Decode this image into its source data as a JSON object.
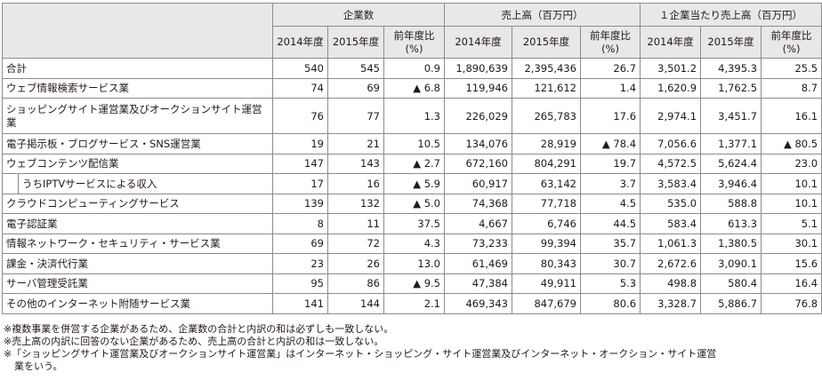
{
  "table": {
    "group_headers": [
      "企業数",
      "売上高（百万円）",
      "１企業当たり売上高（百万円）"
    ],
    "sub_headers": [
      "2014年度",
      "2015年度",
      "前年度比\n(%)",
      "2014年度",
      "2015年度",
      "前年度比\n(%)",
      "2014年度",
      "2015年度",
      "前年度比\n(%)"
    ],
    "rows": [
      {
        "label": "合計",
        "cells": [
          "540",
          "545",
          "0.9",
          "1,890,639",
          "2,395,436",
          "26.7",
          "3,501.2",
          "4,395.3",
          "25.5"
        ]
      },
      {
        "label": "ウェブ情報検索サービス業",
        "cells": [
          "74",
          "69",
          "▲ 6.8",
          "119,946",
          "121,612",
          "1.4",
          "1,620.9",
          "1,762.5",
          "8.7"
        ]
      },
      {
        "label": "ショッピングサイト運営業及びオークションサイト運営業",
        "cells": [
          "76",
          "77",
          "1.3",
          "226,029",
          "265,783",
          "17.6",
          "2,974.1",
          "3,451.7",
          "16.1"
        ]
      },
      {
        "label": "電子掲示板・ブログサービス・SNS運営業",
        "cells": [
          "19",
          "21",
          "10.5",
          "134,076",
          "28,919",
          "▲ 78.4",
          "7,056.6",
          "1,377.1",
          "▲ 80.5"
        ]
      },
      {
        "label": "ウェブコンテンツ配信業",
        "cells": [
          "147",
          "143",
          "▲ 2.7",
          "672,160",
          "804,291",
          "19.7",
          "4,572.5",
          "5,624.4",
          "23.0"
        ]
      },
      {
        "label": "うちIPTVサービスによる収入",
        "cells": [
          "17",
          "16",
          "▲ 5.9",
          "60,917",
          "63,142",
          "3.7",
          "3,583.4",
          "3,946.4",
          "10.1"
        ]
      },
      {
        "label": "クラウドコンピューティングサービス",
        "cells": [
          "139",
          "132",
          "▲ 5.0",
          "74,368",
          "77,718",
          "4.5",
          "535.0",
          "588.8",
          "10.1"
        ]
      },
      {
        "label": "電子認証業",
        "cells": [
          "8",
          "11",
          "37.5",
          "4,667",
          "6,746",
          "44.5",
          "583.4",
          "613.3",
          "5.1"
        ]
      },
      {
        "label": "情報ネットワーク・セキュリティ・サービス業",
        "cells": [
          "69",
          "72",
          "4.3",
          "73,233",
          "99,394",
          "35.7",
          "1,061.3",
          "1,380.5",
          "30.1"
        ]
      },
      {
        "label": "課金・決済代行業",
        "cells": [
          "23",
          "26",
          "13.0",
          "61,469",
          "80,343",
          "30.7",
          "2,672.6",
          "3,090.1",
          "15.6"
        ]
      },
      {
        "label": "サーバ管理受託業",
        "cells": [
          "95",
          "86",
          "▲ 9.5",
          "47,384",
          "49,911",
          "5.3",
          "498.8",
          "580.4",
          "16.4"
        ]
      },
      {
        "label": "その他のインターネット附随サービス業",
        "cells": [
          "141",
          "144",
          "2.1",
          "469,343",
          "847,679",
          "80.6",
          "3,328.7",
          "5,886.7",
          "76.8"
        ]
      }
    ]
  },
  "notes": [
    "※複数事業を併営する企業があるため、企業数の合計と内訳の和は必ずしも一致しない。",
    "※売上高の内訳に回答のない企業があるため、売上高の合計と内訳の和は一致しない。",
    "※「ショッピングサイト運営業及びオークションサイト運営業」はインターネット・ショッピング・サイト運営業及びインターネット・オークション・サイト運営",
    "業をいう。"
  ]
}
